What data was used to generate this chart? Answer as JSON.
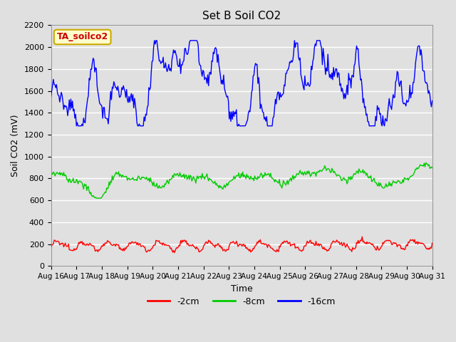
{
  "title": "Set B Soil CO2",
  "xlabel": "Time",
  "ylabel": "Soil CO2 (mV)",
  "x_tick_labels": [
    "Aug 16",
    "Aug 17",
    "Aug 18",
    "Aug 19",
    "Aug 20",
    "Aug 21",
    "Aug 22",
    "Aug 23",
    "Aug 24",
    "Aug 25",
    "Aug 26",
    "Aug 27",
    "Aug 28",
    "Aug 29",
    "Aug 30",
    "Aug 31"
  ],
  "ylim": [
    0,
    2200
  ],
  "yticks": [
    0,
    200,
    400,
    600,
    800,
    1000,
    1200,
    1400,
    1600,
    1800,
    2000,
    2200
  ],
  "bg_color": "#e0e0e0",
  "grid_color": "#ffffff",
  "line_red": "#ff0000",
  "line_green": "#00cc00",
  "line_blue": "#0000ff",
  "legend_labels": [
    "-2cm",
    "-8cm",
    "-16cm"
  ],
  "annotation_text": "TA_soilco2",
  "annotation_bg": "#ffffcc",
  "annotation_border": "#ccaa00",
  "annotation_color": "#cc0000",
  "n_points": 480
}
